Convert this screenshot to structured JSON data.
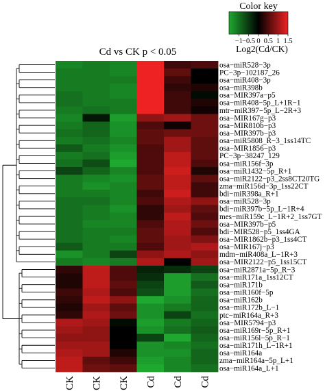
{
  "chart_data": {
    "type": "heatmap",
    "title": "Cd vs CK p < 0.05",
    "columns": [
      "CK",
      "CK",
      "CK",
      "Cd",
      "Cd",
      "Cd"
    ],
    "rows": [
      "osa−miR528−3p",
      "PC−3p−102187_26",
      "osa−miR408−3p",
      "osa−miR398b",
      "osa−MIR397a−p5",
      "osa−miR408−5p_L+1R−1",
      "mtr−miR397−5p_L−2R+3",
      "osa−MIR167g−p3",
      "osa−MIR810b−p3",
      "osa−MIR397b−p3",
      "osa−miR5808_R−3_1ss14TC",
      "osa−MIR1856−p3",
      "PC−3p−38247_129",
      "osa−miR156f−3p",
      "osa−miR1432−5p_R+1",
      "osa−miR2122−p3_2ss8CT20TG",
      "zma−miR156d−3p_1ss22CT",
      "bdi−miR398a_R+1",
      "osa−miR528−3p",
      "bdi−miR397b−5p_L−1R+4",
      "mes−miR159c_L−1R+2_1ss7GT",
      "osa−MIR397b−p5",
      "bdi−MIR528−p5_1ss4GA",
      "osa−MIR1862b−p3_1ss4CT",
      "osa−MIR167j−p3",
      "mdm−miR408a_L−1R+3",
      "osa−MIR2122−p5_1ss15CT",
      "osa−miR2871a−5p_R−3",
      "osa−miR171a_1ss12CT",
      "osa−miR171b",
      "osa−miR160f−5p",
      "osa−miR162b",
      "osa−miR172b_L−1",
      "ptc−miR164a_R+3",
      "osa−MIR5794−p3",
      "osa−miR169r−5p_R+1",
      "osa−miR156l−5p_R−1",
      "osa−miR171h_L−1R+1",
      "osa−miR164a",
      "zma−miR164a−5p_L+1",
      "osa−miR164a_L+1"
    ],
    "values": [
      [
        -1.2,
        -1.1,
        -1.2,
        1.5,
        0.4,
        0.5
      ],
      [
        -1.1,
        -1.1,
        -1.2,
        1.5,
        0.6,
        0.0
      ],
      [
        -1.1,
        -1.1,
        -1.1,
        1.5,
        0.4,
        0.0
      ],
      [
        -1.1,
        -1.1,
        -1.2,
        1.5,
        0.3,
        0.2
      ],
      [
        -1.0,
        -1.1,
        -1.2,
        1.5,
        0.4,
        -0.1
      ],
      [
        -1.0,
        -1.1,
        -1.1,
        1.5,
        0.4,
        0.2
      ],
      [
        -1.1,
        -1.0,
        -1.1,
        1.5,
        0.4,
        0.1
      ],
      [
        -1.2,
        -0.2,
        -1.4,
        0.9,
        1.0,
        0.7
      ],
      [
        -1.1,
        -0.9,
        -1.3,
        0.5,
        0.1,
        0.7
      ],
      [
        -1.0,
        -0.9,
        -1.3,
        0.6,
        0.7,
        0.7
      ],
      [
        -1.1,
        -1.0,
        -1.2,
        0.6,
        1.0,
        0.6
      ],
      [
        -0.8,
        -1.1,
        -1.3,
        0.5,
        1.0,
        0.6
      ],
      [
        -1.1,
        -1.0,
        -1.4,
        0.5,
        1.2,
        0.6
      ],
      [
        -1.0,
        -0.7,
        -1.5,
        0.5,
        1.2,
        0.5
      ],
      [
        -0.6,
        -0.9,
        -1.2,
        0.5,
        1.3,
        0.2
      ],
      [
        -1.1,
        -1.2,
        -1.3,
        0.6,
        1.2,
        0.6
      ],
      [
        -1.1,
        -1.3,
        -1.2,
        0.6,
        1.2,
        0.4
      ],
      [
        -1.1,
        -1.1,
        -1.2,
        0.4,
        1.3,
        0.4
      ],
      [
        -1.0,
        -1.0,
        -1.2,
        0.5,
        1.1,
        0.9
      ],
      [
        -1.0,
        -1.1,
        -1.3,
        0.3,
        1.0,
        0.6
      ],
      [
        -1.0,
        -1.1,
        -1.2,
        0.3,
        1.2,
        0.5
      ],
      [
        -1.0,
        -1.2,
        -1.2,
        0.5,
        1.1,
        0.7
      ],
      [
        -1.0,
        -1.1,
        -1.1,
        0.6,
        1.1,
        0.5
      ],
      [
        -1.0,
        -1.1,
        -1.2,
        0.6,
        1.0,
        0.8
      ],
      [
        -0.8,
        -1.1,
        -1.1,
        0.5,
        1.0,
        1.1
      ],
      [
        -1.3,
        -1.1,
        -0.6,
        0.9,
        1.1,
        0.9
      ],
      [
        -1.1,
        -1.2,
        -1.1,
        1.1,
        0.0,
        1.0
      ],
      [
        0.3,
        1.2,
        0.5,
        -0.3,
        -0.4,
        -0.6
      ],
      [
        0.2,
        1.2,
        0.5,
        -0.4,
        -1.4,
        -1.0
      ],
      [
        0.2,
        1.2,
        0.6,
        -0.6,
        -1.4,
        -0.8
      ],
      [
        0.4,
        1.1,
        0.5,
        -0.7,
        -1.4,
        -1.0
      ],
      [
        0.3,
        1.2,
        0.9,
        -1.5,
        -1.3,
        -0.9
      ],
      [
        0.2,
        1.0,
        0.6,
        -1.3,
        -1.1,
        -0.9
      ],
      [
        0.3,
        1.1,
        0.7,
        -1.3,
        -0.6,
        -1.0
      ],
      [
        1.1,
        1.0,
        -0.1,
        -1.4,
        -1.1,
        -0.9
      ],
      [
        1.0,
        0.9,
        0.0,
        -1.3,
        -1.0,
        -0.8
      ],
      [
        0.9,
        0.9,
        0.0,
        -0.6,
        -1.5,
        -0.9
      ],
      [
        1.0,
        1.0,
        0.0,
        -1.3,
        -1.2,
        -1.0
      ],
      [
        1.1,
        1.0,
        0.2,
        -1.3,
        -1.3,
        -0.9
      ],
      [
        1.2,
        0.6,
        0.4,
        -1.4,
        -1.2,
        -0.9
      ],
      [
        1.2,
        0.7,
        0.6,
        -1.5,
        -1.2,
        -1.0
      ]
    ],
    "dendrogram": "rows",
    "color_scale": {
      "min": -1.5,
      "mid": 0,
      "max": 1.5,
      "low": "#1fa82f",
      "midColor": "#000000",
      "high": "#ee2222"
    },
    "color_key": {
      "title": "Color key",
      "tick_labels": [
        "−1",
        "−0.5",
        "0",
        "0.5",
        "1",
        "1.5"
      ],
      "tick_values": [
        -1,
        -0.5,
        0,
        0.5,
        1,
        1.5
      ],
      "xlabel": "Log2(Cd/CK)"
    }
  }
}
